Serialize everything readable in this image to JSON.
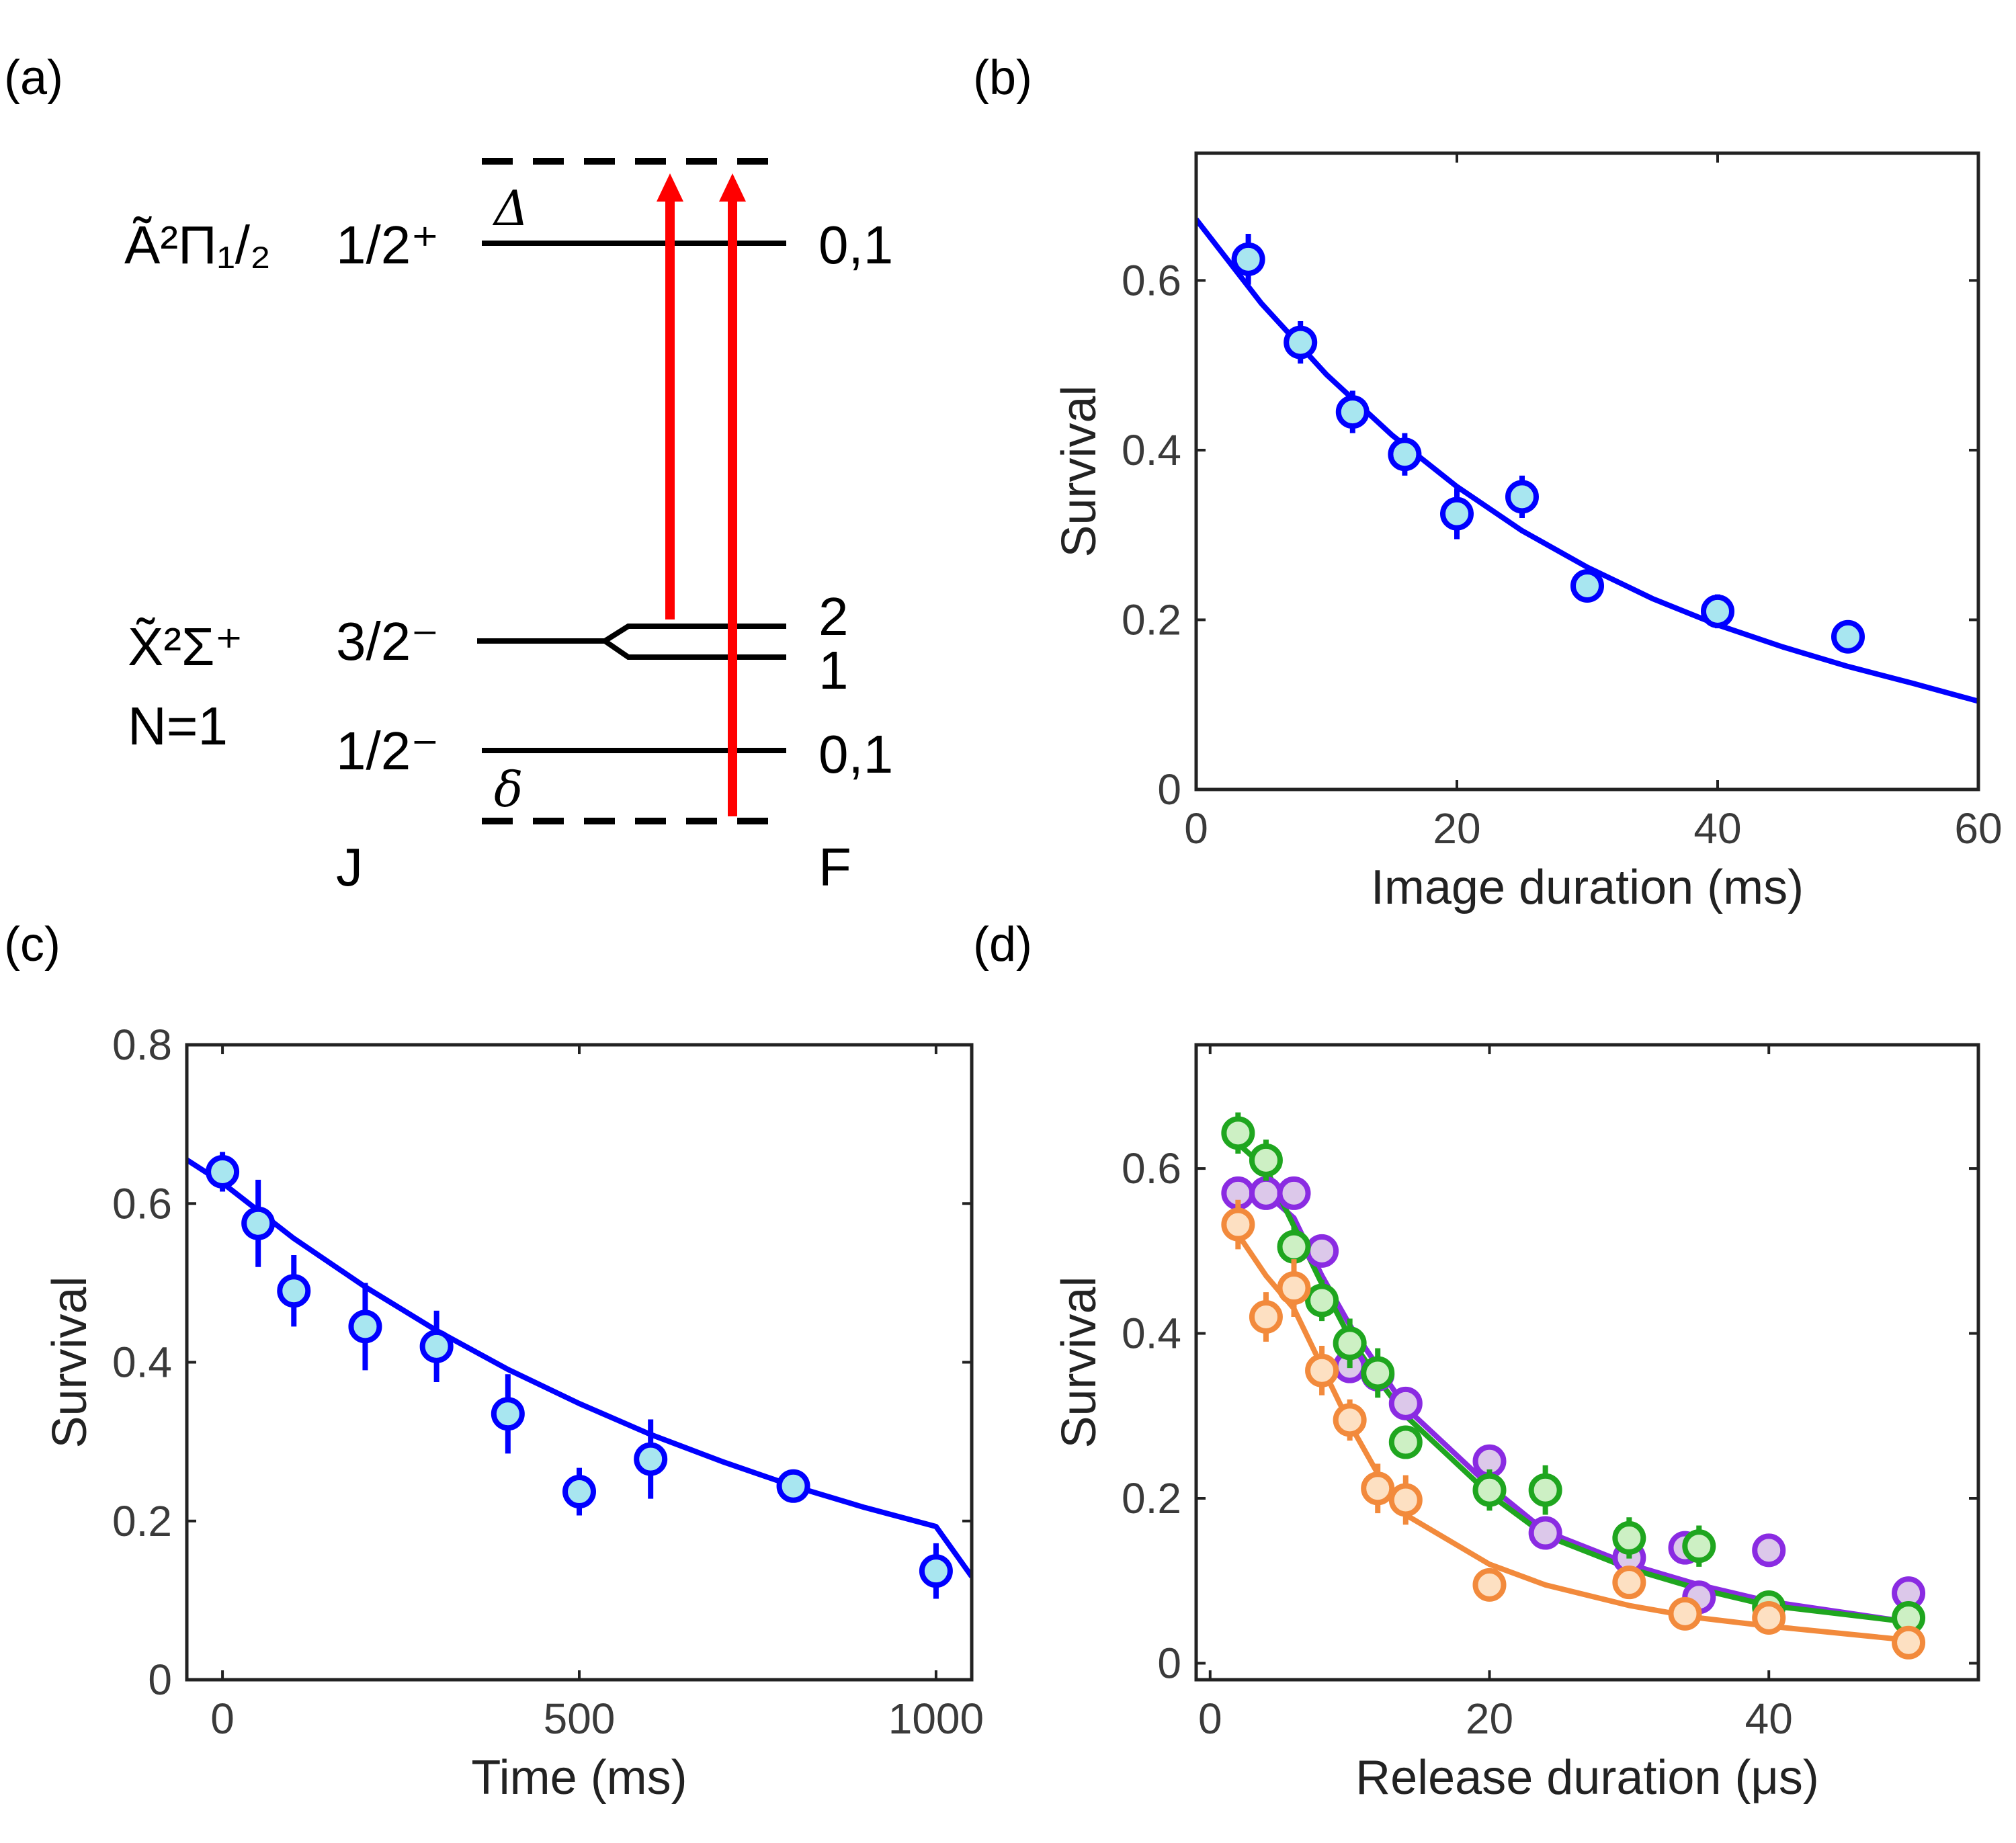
{
  "panels": {
    "a": {
      "label": "(a)",
      "excited_state": "Ã²Π₁/₂",
      "excited_j": "1/2⁺",
      "excited_f": "0,1",
      "detuning_upper": "Δ",
      "ground_state": "X̃²Σ⁺",
      "ground_n": "N=1",
      "ground_j_upper": "3/2⁻",
      "ground_f_upper_a": "2",
      "ground_f_upper_b": "1",
      "ground_j_lower": "1/2⁻",
      "ground_f_lower": "0,1",
      "detuning_lower": "δ",
      "col_j": "J",
      "col_f": "F",
      "colors": {
        "level": "#000000",
        "arrow": "#ff0000"
      }
    },
    "b": {
      "label": "(b)"
    },
    "c": {
      "label": "(c)"
    },
    "d": {
      "label": "(d)"
    }
  },
  "chart_data": [
    {
      "panel": "b",
      "type": "scatter",
      "xlabel": "Image duration (ms)",
      "ylabel": "Survival",
      "xlim": [
        0,
        60
      ],
      "ylim": [
        0,
        0.75
      ],
      "xticks": [
        0,
        20,
        40,
        60
      ],
      "yticks": [
        0,
        0.2,
        0.4,
        0.6
      ],
      "ytick_labels": [
        "0",
        "0.2",
        "0.4",
        "0.6"
      ],
      "series": [
        {
          "x": [
            4,
            8,
            12,
            16,
            20,
            25,
            30,
            40,
            50
          ],
          "y": [
            0.625,
            0.527,
            0.445,
            0.395,
            0.325,
            0.345,
            0.24,
            0.21,
            0.18
          ],
          "err": [
            0.03,
            0.025,
            0.025,
            0.025,
            0.03,
            0.025,
            0.015,
            0.02,
            0.012
          ],
          "color": "#0000ff",
          "fill": "#a8e6f0"
        }
      ],
      "fits": [
        {
          "x": [
            0,
            5,
            10,
            15,
            20,
            25,
            30,
            35,
            40,
            45,
            50,
            55,
            60
          ],
          "y": [
            0.672,
            0.573,
            0.489,
            0.418,
            0.357,
            0.305,
            0.262,
            0.225,
            0.194,
            0.168,
            0.145,
            0.125,
            0.104
          ],
          "color": "#0000ff"
        }
      ]
    },
    {
      "panel": "c",
      "type": "scatter",
      "xlabel": "Time (ms)",
      "ylabel": "Survival",
      "xlim": [
        -50,
        1050
      ],
      "ylim": [
        0,
        0.8
      ],
      "xticks": [
        0,
        500,
        1000
      ],
      "yticks": [
        0,
        0.2,
        0.4,
        0.6,
        0.8
      ],
      "ytick_labels": [
        "0",
        "0.2",
        "0.4",
        "0.6",
        "0.8"
      ],
      "series": [
        {
          "x": [
            0,
            50,
            100,
            200,
            300,
            400,
            500,
            600,
            800,
            1000
          ],
          "y": [
            0.64,
            0.575,
            0.49,
            0.445,
            0.42,
            0.335,
            0.237,
            0.278,
            0.244,
            0.137
          ],
          "err": [
            0.025,
            0.055,
            0.045,
            0.055,
            0.045,
            0.05,
            0.03,
            0.05,
            0.02,
            0.035
          ],
          "color": "#0000ff",
          "fill": "#a8e6f0"
        }
      ],
      "fits": [
        {
          "x": [
            -50,
            0,
            100,
            200,
            300,
            400,
            500,
            600,
            700,
            800,
            900,
            1000,
            1050
          ],
          "y": [
            0.655,
            0.626,
            0.556,
            0.495,
            0.44,
            0.391,
            0.348,
            0.309,
            0.275,
            0.244,
            0.217,
            0.193,
            0.13
          ],
          "color": "#0000ff"
        }
      ]
    },
    {
      "panel": "d",
      "type": "scatter",
      "xlabel": "Release duration (μs)",
      "ylabel": "Survival",
      "xlim": [
        -1,
        55
      ],
      "ylim": [
        -0.02,
        0.75
      ],
      "xticks": [
        0,
        20,
        40
      ],
      "yticks": [
        0,
        0.2,
        0.4,
        0.6
      ],
      "ytick_labels": [
        "0",
        "0.2",
        "0.4",
        "0.6"
      ],
      "series": [
        {
          "x": [
            2,
            4,
            6,
            8,
            10,
            12,
            14,
            20,
            24,
            30,
            34,
            35,
            40,
            50
          ],
          "y": [
            0.57,
            0.57,
            0.57,
            0.5,
            0.36,
            0.35,
            0.315,
            0.245,
            0.158,
            0.128,
            0.14,
            0.08,
            0.137,
            0.085
          ],
          "err": [
            0.02,
            0.02,
            0.02,
            0.02,
            0.02,
            0.02,
            0.02,
            0.02,
            0.02,
            0.02,
            0.02,
            0.02,
            0.015,
            0.015
          ],
          "color": "#8a2be2",
          "fill": "#dcc8ea"
        },
        {
          "x": [
            2,
            4,
            6,
            8,
            10,
            12,
            14,
            20,
            24,
            30,
            35,
            40,
            50
          ],
          "y": [
            0.643,
            0.61,
            0.505,
            0.44,
            0.388,
            0.352,
            0.268,
            0.21,
            0.21,
            0.152,
            0.142,
            0.068,
            0.055
          ],
          "err": [
            0.025,
            0.025,
            0.025,
            0.025,
            0.03,
            0.03,
            0.02,
            0.025,
            0.03,
            0.025,
            0.025,
            0.015,
            0.015
          ],
          "color": "#1fa61f",
          "fill": "#cdf0c4"
        },
        {
          "x": [
            2,
            4,
            6,
            8,
            10,
            12,
            14,
            20,
            30,
            34,
            40,
            50
          ],
          "y": [
            0.532,
            0.42,
            0.455,
            0.355,
            0.295,
            0.212,
            0.198,
            0.095,
            0.098,
            0.06,
            0.055,
            0.025
          ],
          "err": [
            0.03,
            0.03,
            0.035,
            0.03,
            0.025,
            0.03,
            0.03,
            0.015,
            0.02,
            0.015,
            0.012,
            0.01
          ],
          "color": "#f28a3c",
          "fill": "#fde0c2"
        }
      ],
      "fits": [
        {
          "x": [
            2,
            4,
            6,
            8,
            10,
            12,
            14,
            20,
            24,
            30,
            35,
            40,
            50
          ],
          "y": [
            0.57,
            0.57,
            0.54,
            0.47,
            0.41,
            0.36,
            0.31,
            0.215,
            0.16,
            0.12,
            0.095,
            0.075,
            0.05
          ],
          "color": "#8a2be2"
        },
        {
          "x": [
            2,
            4,
            6,
            8,
            10,
            12,
            14,
            20,
            24,
            30,
            35,
            40,
            50
          ],
          "y": [
            0.63,
            0.6,
            0.53,
            0.46,
            0.395,
            0.345,
            0.3,
            0.205,
            0.155,
            0.115,
            0.09,
            0.07,
            0.05
          ],
          "color": "#1fa61f"
        },
        {
          "x": [
            2,
            4,
            6,
            8,
            10,
            12,
            14,
            20,
            24,
            30,
            35,
            40,
            50
          ],
          "y": [
            0.52,
            0.47,
            0.43,
            0.36,
            0.29,
            0.23,
            0.18,
            0.12,
            0.095,
            0.07,
            0.055,
            0.045,
            0.028
          ],
          "color": "#f28a3c"
        }
      ]
    }
  ]
}
